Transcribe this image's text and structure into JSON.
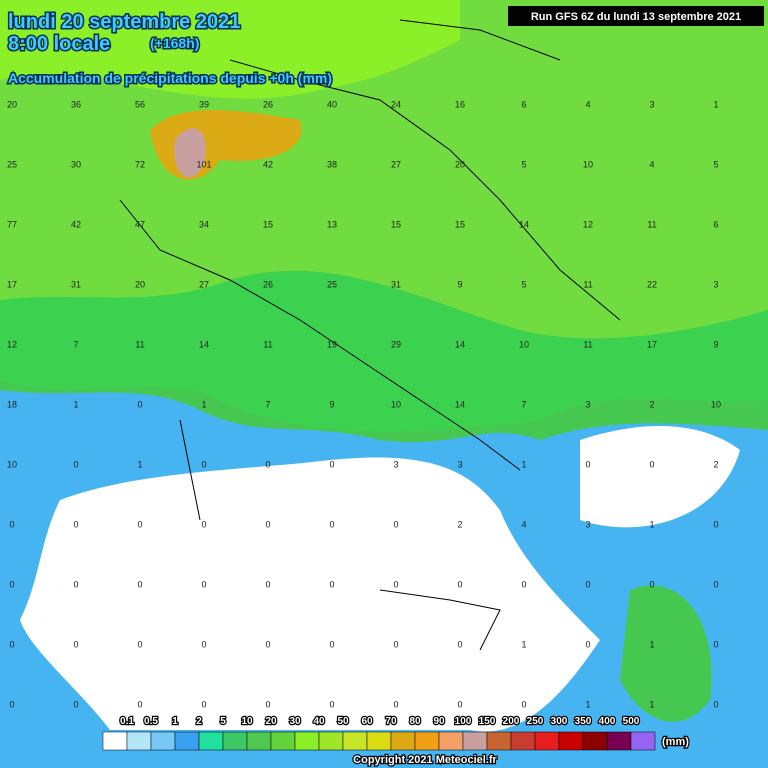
{
  "header": {
    "date": "lundi 20 septembre 2021",
    "time": "8:00 locale",
    "lead": "(+168h)",
    "subtitle": "Accumulation de précipitations depuis +0h (mm)",
    "run": "Run GFS 6Z du lundi 13 septembre 2021"
  },
  "grid_values": [
    [
      20,
      36,
      56,
      39,
      26,
      40,
      24,
      16,
      6,
      4,
      3,
      1
    ],
    [
      25,
      30,
      72,
      101,
      42,
      38,
      27,
      20,
      5,
      10,
      4,
      5
    ],
    [
      77,
      42,
      47,
      34,
      15,
      13,
      15,
      15,
      14,
      12,
      11,
      6
    ],
    [
      17,
      31,
      20,
      27,
      26,
      25,
      31,
      9,
      5,
      11,
      22,
      3
    ],
    [
      12,
      7,
      11,
      14,
      11,
      19,
      29,
      14,
      10,
      11,
      17,
      9
    ],
    [
      18,
      1,
      0,
      1,
      7,
      9,
      10,
      14,
      7,
      3,
      2,
      10
    ],
    [
      10,
      0,
      1,
      0,
      0,
      0,
      3,
      3,
      1,
      0,
      0,
      2
    ],
    [
      0,
      0,
      0,
      0,
      0,
      0,
      0,
      2,
      4,
      3,
      1,
      0
    ],
    [
      0,
      0,
      0,
      0,
      0,
      0,
      0,
      0,
      0,
      0,
      0,
      0
    ],
    [
      0,
      0,
      0,
      0,
      0,
      0,
      0,
      0,
      1,
      0,
      1,
      0
    ],
    [
      0,
      0,
      0,
      0,
      0,
      0,
      0,
      0,
      0,
      1,
      1,
      0
    ]
  ],
  "legend": {
    "labels": [
      "0.1",
      "0.5",
      "1",
      "2",
      "5",
      "10",
      "20",
      "30",
      "40",
      "50",
      "60",
      "70",
      "80",
      "90",
      "100",
      "150",
      "200",
      "250",
      "300",
      "350",
      "400",
      "500"
    ],
    "colors": [
      "#ffffff",
      "#b4e6fa",
      "#78c8f5",
      "#3ca0f0",
      "#20e0a0",
      "#3cc864",
      "#50c850",
      "#64d23c",
      "#8cf028",
      "#a0e628",
      "#c8e628",
      "#dcdc14",
      "#dcaa14",
      "#f0a014",
      "#f5a064",
      "#c8a0a0",
      "#c86432",
      "#c83c32",
      "#e61e1e",
      "#c80000",
      "#8c0000",
      "#780050",
      "#9664f0"
    ],
    "unit": "(mm)"
  },
  "footer": {
    "copyright": "Copyright 2021 Meteociel.fr"
  }
}
